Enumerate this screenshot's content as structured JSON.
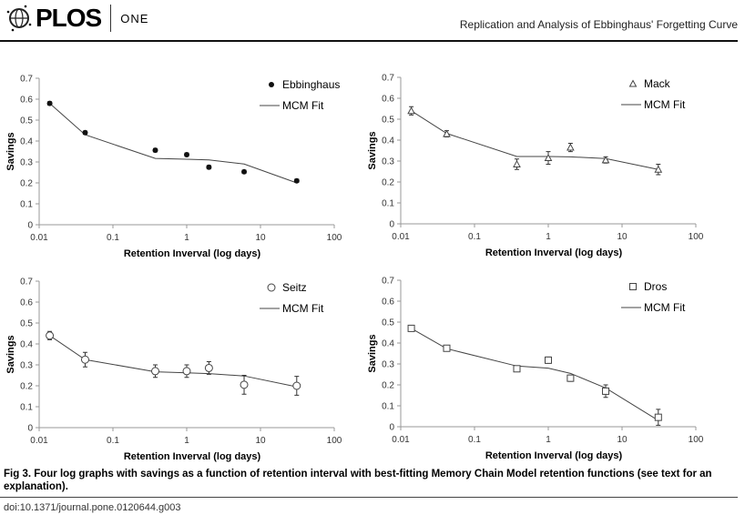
{
  "header": {
    "journal_logo": "PLOS",
    "journal_sub": "ONE",
    "running_title": "Replication and Analysis of Ebbinghaus' Forgetting Curve"
  },
  "caption": "Fig 3. Four log graphs with savings as a function of retention interval with best-fitting Memory Chain Model retention functions (see text for an explanation).",
  "doi": "doi:10.1371/journal.pone.0120644.g003",
  "chart_data": [
    {
      "type": "scatter",
      "xscale": "log",
      "xlim": [
        0.01,
        100
      ],
      "ylim": [
        0,
        0.7
      ],
      "xlabel": "Retention Inverval (log days)",
      "ylabel": "Savings",
      "xticks": [
        "0.01",
        "0.1",
        "1",
        "10",
        "100"
      ],
      "yticks": [
        "0",
        "0.1",
        "0.2",
        "0.3",
        "0.4",
        "0.5",
        "0.6",
        "0.7"
      ],
      "legend": "top-right",
      "marker": "filled-diamond",
      "x": [
        0.0139,
        0.042,
        0.375,
        1,
        2,
        6,
        31
      ],
      "series": [
        {
          "name": "Ebbinghaus",
          "values": [
            0.58,
            0.44,
            0.356,
            0.335,
            0.275,
            0.253,
            0.21
          ],
          "error": [
            0.008,
            0.008,
            0.008,
            0.008,
            0.008,
            0.008,
            0.008
          ]
        },
        {
          "name": "MCM Fit",
          "values": [
            0.58,
            0.43,
            0.317,
            0.313,
            0.31,
            0.29,
            0.2
          ]
        }
      ]
    },
    {
      "type": "scatter",
      "xscale": "log",
      "xlim": [
        0.01,
        100
      ],
      "ylim": [
        0,
        0.7
      ],
      "xlabel": "Retention Inverval (log days)",
      "ylabel": "Savings",
      "xticks": [
        "0.01",
        "0.1",
        "1",
        "10",
        "100"
      ],
      "yticks": [
        "0",
        "0.1",
        "0.2",
        "0.3",
        "0.4",
        "0.5",
        "0.6",
        "0.7"
      ],
      "legend": "top-right",
      "marker": "triangle",
      "x": [
        0.0139,
        0.042,
        0.375,
        1,
        2,
        6,
        31
      ],
      "series": [
        {
          "name": "Mack",
          "values": [
            0.54,
            0.43,
            0.285,
            0.315,
            0.365,
            0.305,
            0.26
          ],
          "error": [
            0.02,
            0.015,
            0.025,
            0.03,
            0.02,
            0.015,
            0.025
          ]
        },
        {
          "name": "MCM Fit",
          "values": [
            0.54,
            0.432,
            0.322,
            0.322,
            0.32,
            0.312,
            0.26
          ]
        }
      ]
    },
    {
      "type": "scatter",
      "xscale": "log",
      "xlim": [
        0.01,
        100
      ],
      "ylim": [
        0,
        0.7
      ],
      "xlabel": "Retention Inverval (log days)",
      "ylabel": "Savings",
      "xticks": [
        "0.01",
        "0.1",
        "1",
        "10",
        "100"
      ],
      "yticks": [
        "0",
        "0.1",
        "0.2",
        "0.3",
        "0.4",
        "0.5",
        "0.6",
        "0.7"
      ],
      "legend": "top-right",
      "marker": "circle",
      "x": [
        0.0139,
        0.042,
        0.375,
        1,
        2,
        6,
        31
      ],
      "series": [
        {
          "name": "Seitz",
          "values": [
            0.44,
            0.325,
            0.27,
            0.27,
            0.285,
            0.205,
            0.2
          ],
          "error": [
            0.02,
            0.035,
            0.03,
            0.03,
            0.03,
            0.045,
            0.045
          ]
        },
        {
          "name": "MCM Fit",
          "values": [
            0.44,
            0.325,
            0.267,
            0.262,
            0.258,
            0.247,
            0.195
          ]
        }
      ]
    },
    {
      "type": "scatter",
      "xscale": "log",
      "xlim": [
        0.01,
        100
      ],
      "ylim": [
        0,
        0.7
      ],
      "xlabel": "Retention Inverval (log days)",
      "ylabel": "Savings",
      "xticks": [
        "0.01",
        "0.1",
        "1",
        "10",
        "100"
      ],
      "yticks": [
        "0",
        "0.1",
        "0.2",
        "0.3",
        "0.4",
        "0.5",
        "0.6",
        "0.7"
      ],
      "legend": "top-right",
      "marker": "square",
      "x": [
        0.0139,
        0.042,
        0.375,
        1,
        2,
        6,
        31
      ],
      "series": [
        {
          "name": "Dros",
          "values": [
            0.47,
            0.375,
            0.277,
            0.318,
            0.232,
            0.17,
            0.045
          ],
          "error": [
            0.01,
            0.01,
            0.012,
            0.015,
            0.015,
            0.03,
            0.038
          ]
        },
        {
          "name": "MCM Fit",
          "values": [
            0.47,
            0.373,
            0.29,
            0.28,
            0.255,
            0.185,
            0.03
          ]
        }
      ]
    }
  ]
}
